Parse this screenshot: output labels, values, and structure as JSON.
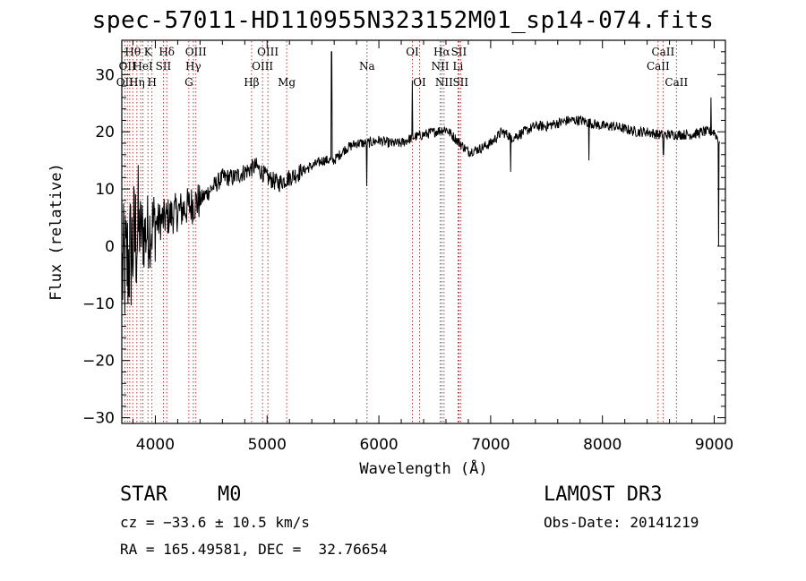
{
  "header": {
    "title": "spec-57011-HD110955N323152M01_sp14-074.fits"
  },
  "footer": {
    "object_class": "STAR",
    "subclass": "M0",
    "survey": "LAMOST DR3",
    "redshift_text": "cz = −33.6 ± 10.5 km/s",
    "obs_date_text": "Obs-Date: 20141219",
    "coords_text": "RA = 165.49581, DEC =  32.76654"
  },
  "chart_data": {
    "type": "line",
    "title": "spec-57011-HD110955N323152M01_sp14-074.fits",
    "xlabel": "Wavelength (Å)",
    "ylabel": "Flux (relative)",
    "xlim": [
      3700,
      9100
    ],
    "ylim": [
      -31,
      36
    ],
    "xticks": [
      4000,
      5000,
      6000,
      7000,
      8000,
      9000
    ],
    "yticks": [
      -30,
      -20,
      -10,
      0,
      10,
      20,
      30
    ],
    "colors": {
      "spectrum": "#000000",
      "line_markers": "#b22222",
      "axes": "#000000"
    },
    "spectrum_anchors": [
      [
        3700,
        -5
      ],
      [
        3750,
        -3
      ],
      [
        3800,
        0
      ],
      [
        3850,
        3
      ],
      [
        3900,
        2
      ],
      [
        4000,
        4
      ],
      [
        4100,
        5
      ],
      [
        4200,
        6
      ],
      [
        4300,
        7
      ],
      [
        4400,
        8
      ],
      [
        4500,
        10
      ],
      [
        4600,
        12
      ],
      [
        4700,
        12
      ],
      [
        4800,
        13
      ],
      [
        4900,
        14
      ],
      [
        5000,
        12
      ],
      [
        5100,
        11
      ],
      [
        5200,
        12
      ],
      [
        5300,
        13
      ],
      [
        5400,
        14
      ],
      [
        5500,
        15
      ],
      [
        5600,
        15
      ],
      [
        5700,
        17
      ],
      [
        5800,
        18
      ],
      [
        5900,
        18
      ],
      [
        6000,
        18.5
      ],
      [
        6100,
        18
      ],
      [
        6200,
        18
      ],
      [
        6300,
        19
      ],
      [
        6400,
        19.5
      ],
      [
        6500,
        20
      ],
      [
        6600,
        20.5
      ],
      [
        6700,
        18.5
      ],
      [
        6800,
        16.5
      ],
      [
        6900,
        17
      ],
      [
        7000,
        18
      ],
      [
        7100,
        20
      ],
      [
        7200,
        19
      ],
      [
        7300,
        20
      ],
      [
        7400,
        21
      ],
      [
        7500,
        21
      ],
      [
        7600,
        21.5
      ],
      [
        7700,
        22
      ],
      [
        7800,
        22
      ],
      [
        7900,
        21.5
      ],
      [
        8000,
        21
      ],
      [
        8100,
        21
      ],
      [
        8200,
        20.5
      ],
      [
        8300,
        20
      ],
      [
        8400,
        20
      ],
      [
        8500,
        19.5
      ],
      [
        8600,
        19.5
      ],
      [
        8700,
        19.5
      ],
      [
        8800,
        19.5
      ],
      [
        8900,
        20
      ],
      [
        9000,
        20
      ],
      [
        9050,
        18
      ]
    ],
    "spectrum_features": [
      {
        "x": 5577,
        "y_end": 34,
        "kind": "spike"
      },
      {
        "x": 6300,
        "y_end": 29,
        "kind": "spike"
      },
      {
        "x": 8970,
        "y_end": 26,
        "kind": "spike"
      },
      {
        "x": 5890,
        "y_end": 10.5,
        "kind": "dip"
      },
      {
        "x": 7180,
        "y_end": 13,
        "kind": "dip"
      },
      {
        "x": 7880,
        "y_end": 15,
        "kind": "dip"
      },
      {
        "x": 8545,
        "y_end": 16,
        "kind": "dip"
      },
      {
        "x": 9040,
        "y_end": 0,
        "kind": "dip"
      }
    ],
    "spectral_lines": [
      {
        "wavelength": 3727,
        "label": "OII",
        "row": 3
      },
      {
        "wavelength": 3750,
        "label": "OII",
        "row": 2
      },
      {
        "wavelength": 3771,
        "label": "",
        "row": 0
      },
      {
        "wavelength": 3798,
        "label": "Hθ",
        "row": 1
      },
      {
        "wavelength": 3835,
        "label": "Hη",
        "row": 3
      },
      {
        "wavelength": 3869,
        "label": "",
        "row": 0
      },
      {
        "wavelength": 3889,
        "label": "HeI",
        "row": 2
      },
      {
        "wavelength": 3934,
        "label": "K",
        "row": 1
      },
      {
        "wavelength": 3970,
        "label": "H",
        "row": 3
      },
      {
        "wavelength": 4072,
        "label": "SII",
        "row": 2
      },
      {
        "wavelength": 4102,
        "label": "Hδ",
        "row": 1
      },
      {
        "wavelength": 4300,
        "label": "G",
        "row": 3
      },
      {
        "wavelength": 4340,
        "label": "Hγ",
        "row": 2
      },
      {
        "wavelength": 4363,
        "label": "OIII",
        "row": 1
      },
      {
        "wavelength": 4861,
        "label": "Hβ",
        "row": 3
      },
      {
        "wavelength": 4959,
        "label": "OIII",
        "row": 2
      },
      {
        "wavelength": 5007,
        "label": "OIII",
        "row": 1
      },
      {
        "wavelength": 5175,
        "label": "Mg",
        "row": 3
      },
      {
        "wavelength": 5894,
        "label": "Na",
        "row": 2
      },
      {
        "wavelength": 6300,
        "label": "OI",
        "row": 1
      },
      {
        "wavelength": 6364,
        "label": "OI",
        "row": 3
      },
      {
        "wavelength": 6548,
        "label": "NII",
        "row": 2
      },
      {
        "wavelength": 6563,
        "label": "Hα",
        "row": 1
      },
      {
        "wavelength": 6583,
        "label": "NII",
        "row": 3
      },
      {
        "wavelength": 6708,
        "label": "Li",
        "row": 2
      },
      {
        "wavelength": 6716,
        "label": "SII",
        "row": 1
      },
      {
        "wavelength": 6731,
        "label": "SII",
        "row": 3
      },
      {
        "wavelength": 8498,
        "label": "CaII",
        "row": 2
      },
      {
        "wavelength": 8542,
        "label": "CaII",
        "row": 1
      },
      {
        "wavelength": 8662,
        "label": "CaII",
        "row": 3
      }
    ]
  }
}
